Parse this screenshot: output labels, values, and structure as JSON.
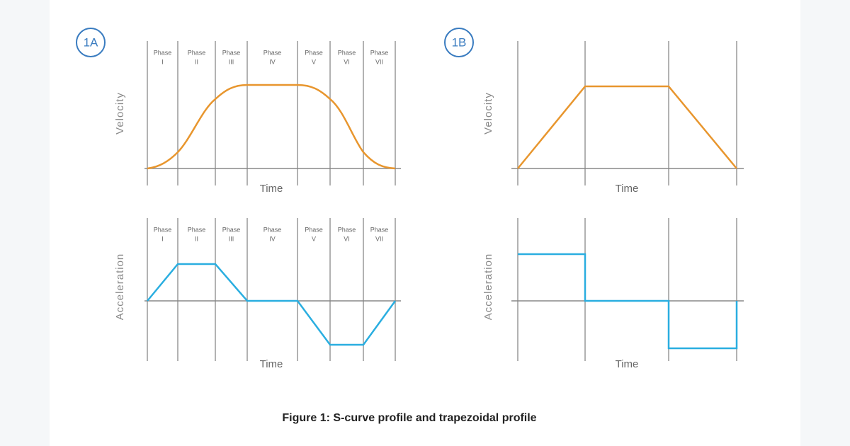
{
  "panels": [
    {
      "badge": "1A",
      "velocity": {
        "y_label": "Velocity",
        "x_label": "Time",
        "phases": [
          {
            "name": "Phase",
            "numeral": "I"
          },
          {
            "name": "Phase",
            "numeral": "II"
          },
          {
            "name": "Phase",
            "numeral": "III"
          },
          {
            "name": "Phase",
            "numeral": "IV"
          },
          {
            "name": "Phase",
            "numeral": "V"
          },
          {
            "name": "Phase",
            "numeral": "VI"
          },
          {
            "name": "Phase",
            "numeral": "VII"
          }
        ]
      },
      "acceleration": {
        "y_label": "Acceleration",
        "x_label": "Time",
        "phases": [
          {
            "name": "Phase",
            "numeral": "I"
          },
          {
            "name": "Phase",
            "numeral": "II"
          },
          {
            "name": "Phase",
            "numeral": "III"
          },
          {
            "name": "Phase",
            "numeral": "IV"
          },
          {
            "name": "Phase",
            "numeral": "V"
          },
          {
            "name": "Phase",
            "numeral": "VI"
          },
          {
            "name": "Phase",
            "numeral": "VII"
          }
        ]
      }
    },
    {
      "badge": "1B",
      "velocity": {
        "y_label": "Velocity",
        "x_label": "Time"
      },
      "acceleration": {
        "y_label": "Acceleration",
        "x_label": "Time"
      }
    }
  ],
  "caption": "Figure 1: S-curve profile and trapezoidal profile"
}
